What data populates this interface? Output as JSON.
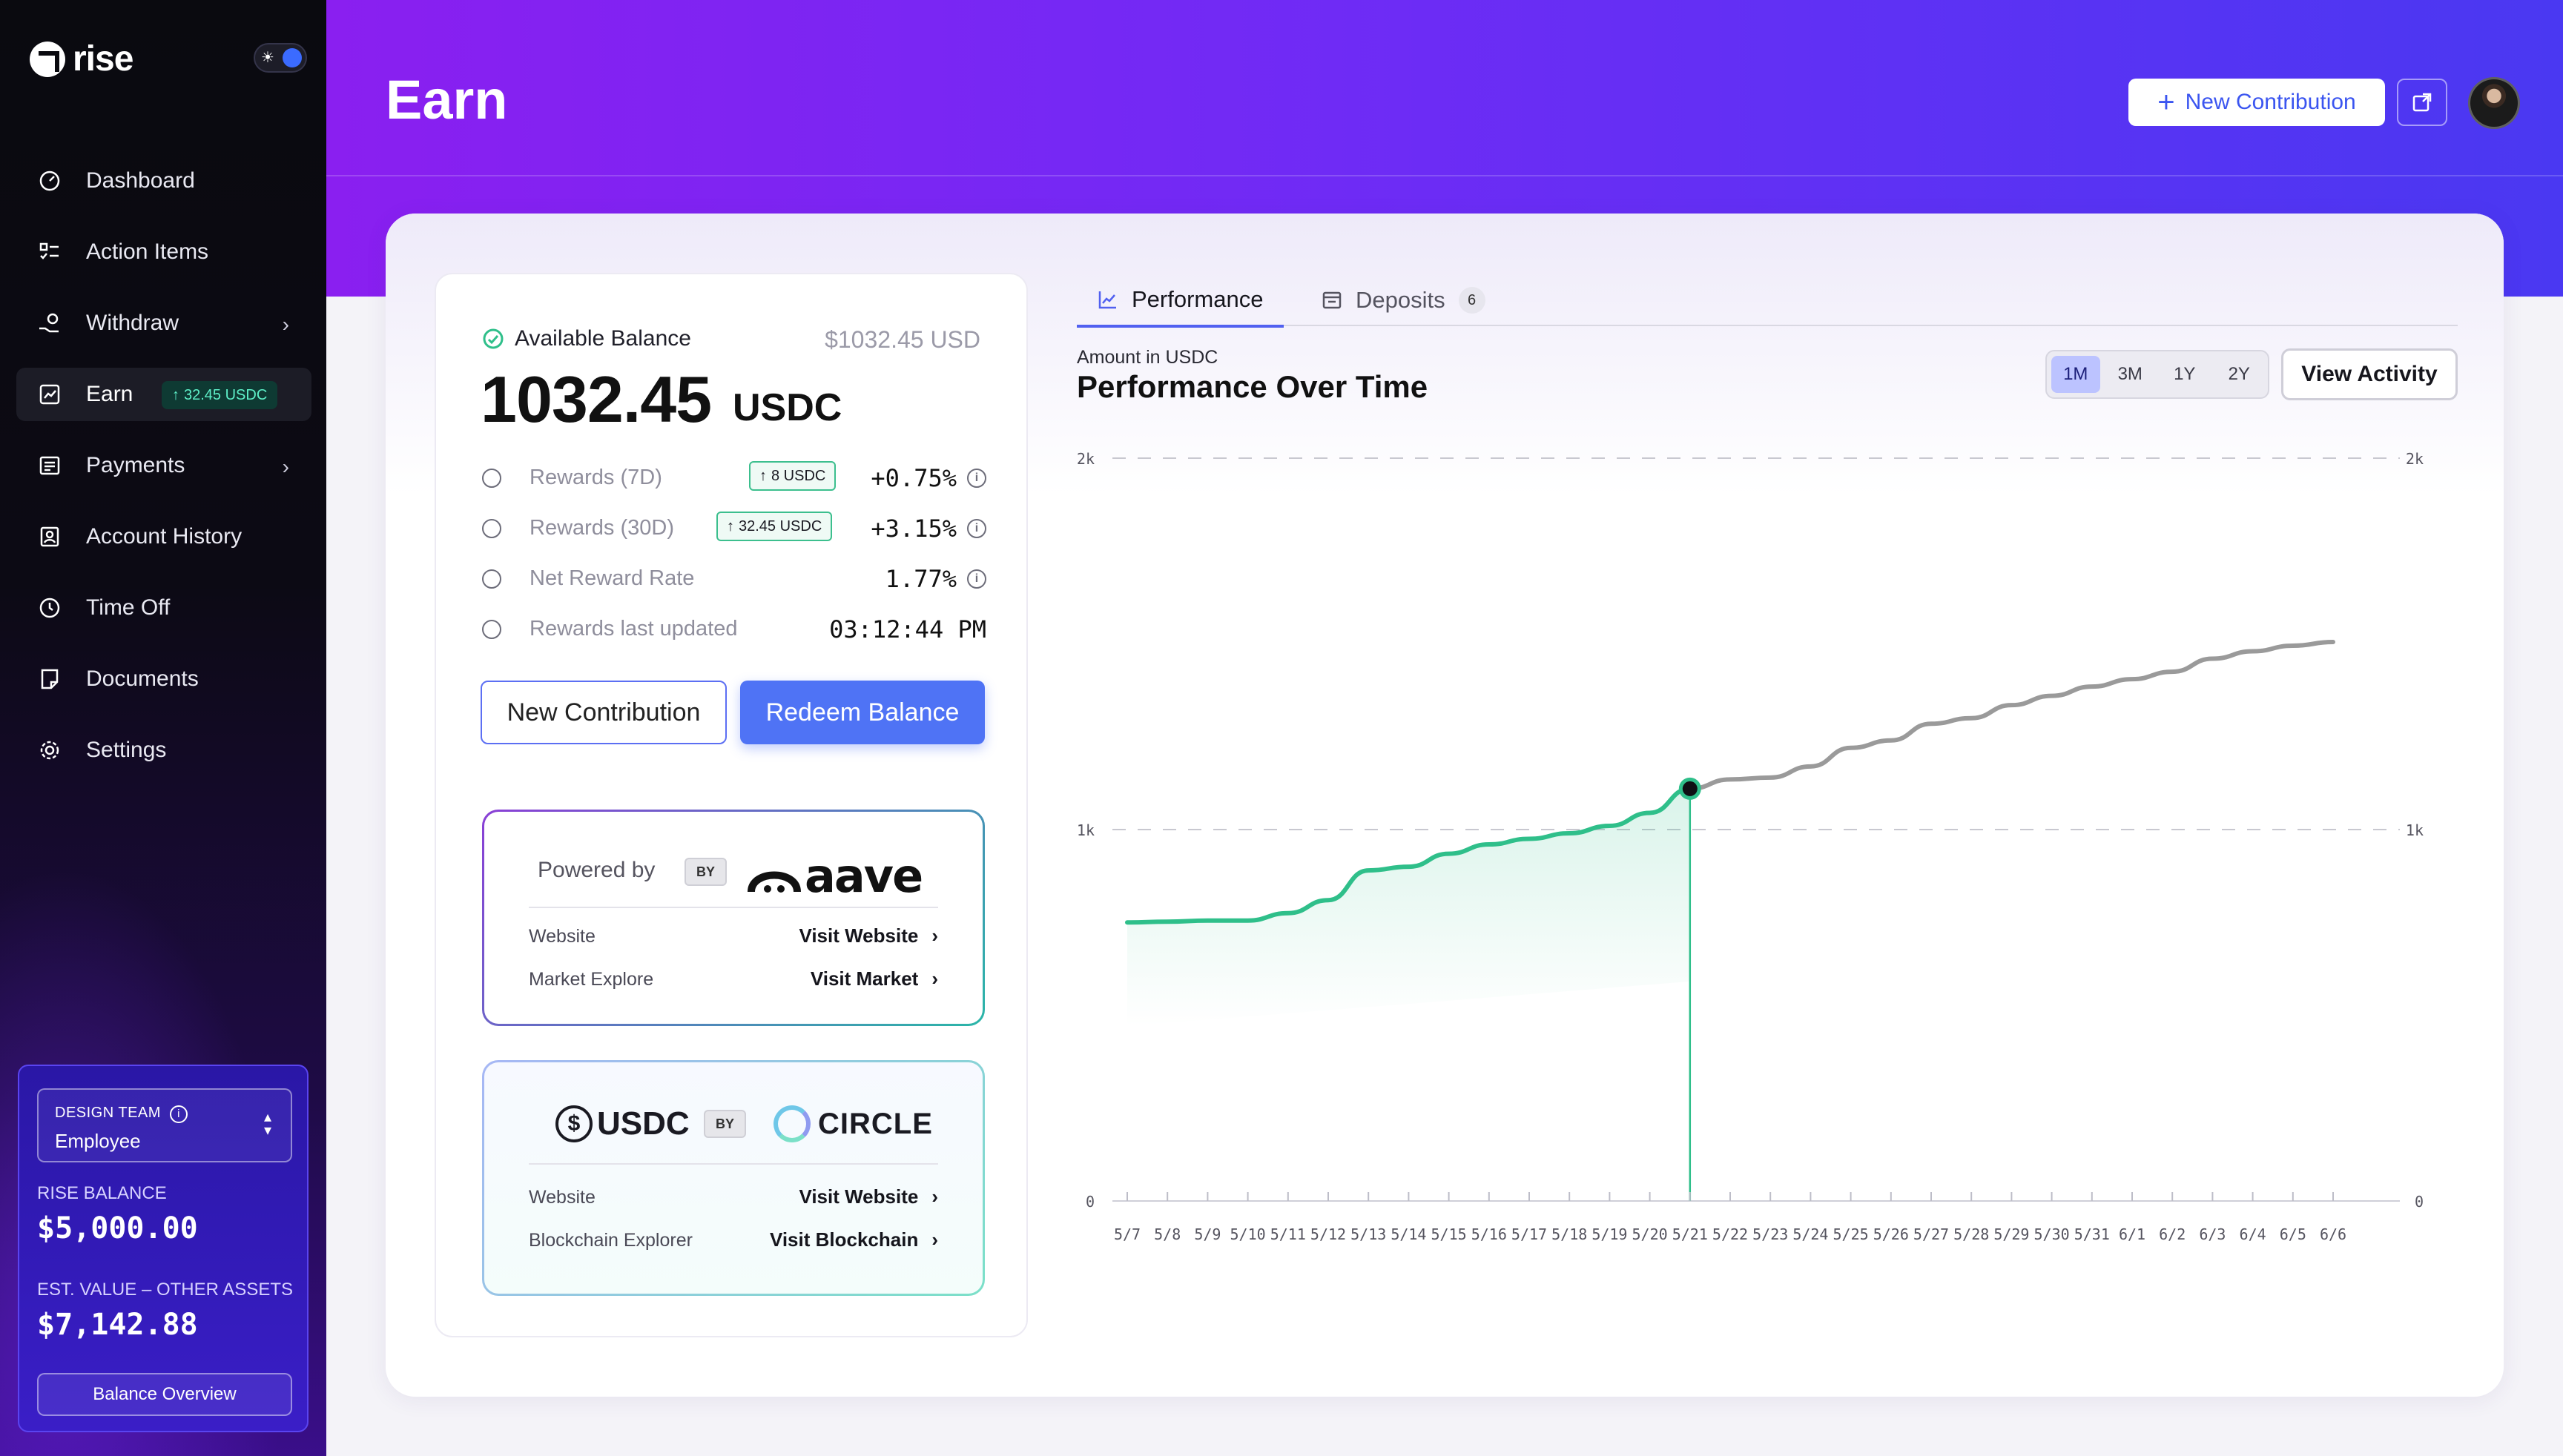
{
  "app": {
    "brand": "rise",
    "theme_toggle_icon": "sun-icon"
  },
  "sidebar": {
    "items": [
      {
        "label": "Dashboard",
        "icon": "dashboard-icon"
      },
      {
        "label": "Action Items",
        "icon": "checklist-icon"
      },
      {
        "label": "Withdraw",
        "icon": "withdraw-icon",
        "has_submenu": true
      },
      {
        "label": "Earn",
        "icon": "earn-icon",
        "active": true,
        "badge": "32.45 USDC"
      },
      {
        "label": "Payments",
        "icon": "payments-icon",
        "has_submenu": true
      },
      {
        "label": "Account History",
        "icon": "account-history-icon"
      },
      {
        "label": "Time Off",
        "icon": "clock-icon"
      },
      {
        "label": "Documents",
        "icon": "document-icon"
      },
      {
        "label": "Settings",
        "icon": "gear-icon"
      }
    ],
    "team": {
      "name": "DESIGN TEAM",
      "role": "Employee"
    },
    "rise_balance_label": "RISE BALANCE",
    "rise_balance_value": "$5,000.00",
    "other_assets_label": "EST. VALUE – OTHER ASSETS",
    "other_assets_value": "$7,142.88",
    "balance_overview_label": "Balance Overview"
  },
  "header": {
    "title": "Earn",
    "new_contribution_label": "New Contribution"
  },
  "balance": {
    "available_label": "Available Balance",
    "usd_value": "$1032.45 USD",
    "amount": "1032.45",
    "unit": "USDC",
    "rows": [
      {
        "label": "Rewards (7D)",
        "badge": "8 USDC",
        "value": "+0.75%"
      },
      {
        "label": "Rewards (30D)",
        "badge": "32.45 USDC",
        "value": "+3.15%"
      },
      {
        "label": "Net Reward Rate",
        "value": "1.77%"
      },
      {
        "label": "Rewards last updated",
        "value": "03:12:44 PM"
      }
    ],
    "new_contribution_label": "New Contribution",
    "redeem_label": "Redeem Balance"
  },
  "aave": {
    "powered_by": "Powered by",
    "by": "BY",
    "logo_text": "aave",
    "website_label": "Website",
    "website_link": "Visit Website",
    "market_label": "Market Explore",
    "market_link": "Visit Market"
  },
  "usdc": {
    "usdc_text": "USDC",
    "by": "BY",
    "circle_text": "CIRCLE",
    "website_label": "Website",
    "website_link": "Visit Website",
    "blockchain_label": "Blockchain Explorer",
    "blockchain_link": "Visit Blockchain"
  },
  "chart_panel": {
    "tabs": [
      {
        "label": "Performance",
        "active": true
      },
      {
        "label": "Deposits",
        "count": "6"
      }
    ],
    "subtitle": "Amount in USDC",
    "title": "Performance Over Time",
    "ranges": [
      "1M",
      "3M",
      "1Y",
      "2Y"
    ],
    "active_range": "1M",
    "view_activity_label": "View Activity"
  },
  "chart_data": {
    "type": "line",
    "title": "Performance Over Time",
    "ylabel": "Amount in USDC",
    "ylim": [
      0,
      2000
    ],
    "y_ticks": [
      "0",
      "1k",
      "2k"
    ],
    "grid": true,
    "x": [
      "5/7",
      "5/8",
      "5/9",
      "5/10",
      "5/11",
      "5/12",
      "5/13",
      "5/14",
      "5/15",
      "5/16",
      "5/17",
      "5/18",
      "5/19",
      "5/20",
      "5/21",
      "5/22",
      "5/23",
      "5/24",
      "5/25",
      "5/26",
      "5/27",
      "5/28",
      "5/29",
      "5/30",
      "5/31",
      "6/1",
      "6/2",
      "6/3",
      "6/4",
      "6/5",
      "6/6"
    ],
    "series": [
      {
        "values": [
          750,
          752,
          755,
          755,
          775,
          810,
          890,
          900,
          935,
          960,
          975,
          990,
          1010,
          1045,
          1110,
          1135,
          1140,
          1170,
          1220,
          1240,
          1285,
          1300,
          1335,
          1360,
          1385,
          1405,
          1425,
          1460,
          1480,
          1495,
          1505
        ]
      }
    ],
    "highlight_index": 14,
    "colors": {
      "past": "#2fbf8a",
      "future": "#9a9a9a",
      "marker": "#0f0f14"
    }
  }
}
